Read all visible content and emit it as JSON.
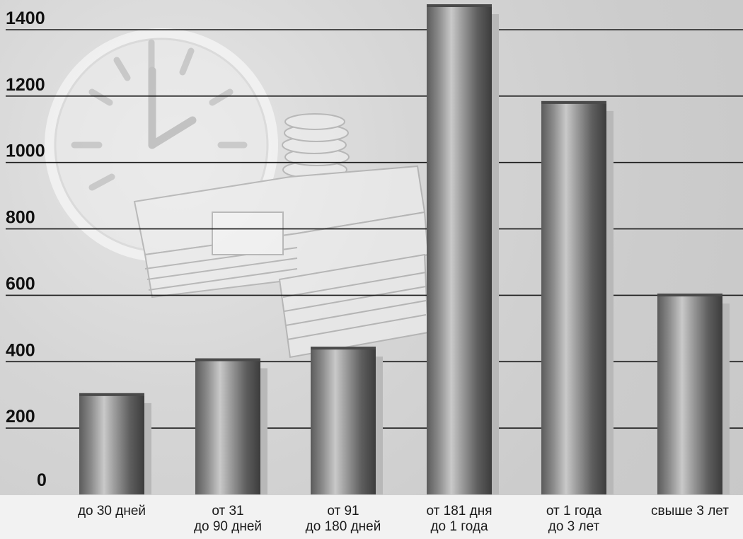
{
  "chart_data": {
    "type": "bar",
    "categories": [
      [
        "до 30 дней"
      ],
      [
        "от 31",
        "до 90 дней"
      ],
      [
        "от 91",
        "до 180 дней"
      ],
      [
        "от 181 дня",
        "до 1 года"
      ],
      [
        "от 1 года",
        "до 3 лет"
      ],
      [
        "свыше 3 лет"
      ]
    ],
    "values": [
      305,
      410,
      445,
      1480,
      1185,
      605
    ],
    "ylim": [
      0,
      1400
    ],
    "yticks": [
      0,
      200,
      400,
      600,
      800,
      1000,
      1200,
      1400
    ],
    "grid": true,
    "title": "",
    "xlabel": "",
    "ylabel": ""
  },
  "colors": {
    "bar_dark": "#4a4a4a",
    "bar_light": "#b8b8b8",
    "gridline": "#1a1a1a",
    "label_band": "#f2f2f2"
  },
  "background_icons": [
    "clock-icon",
    "money-stack-icon",
    "coin-stack-icon"
  ]
}
